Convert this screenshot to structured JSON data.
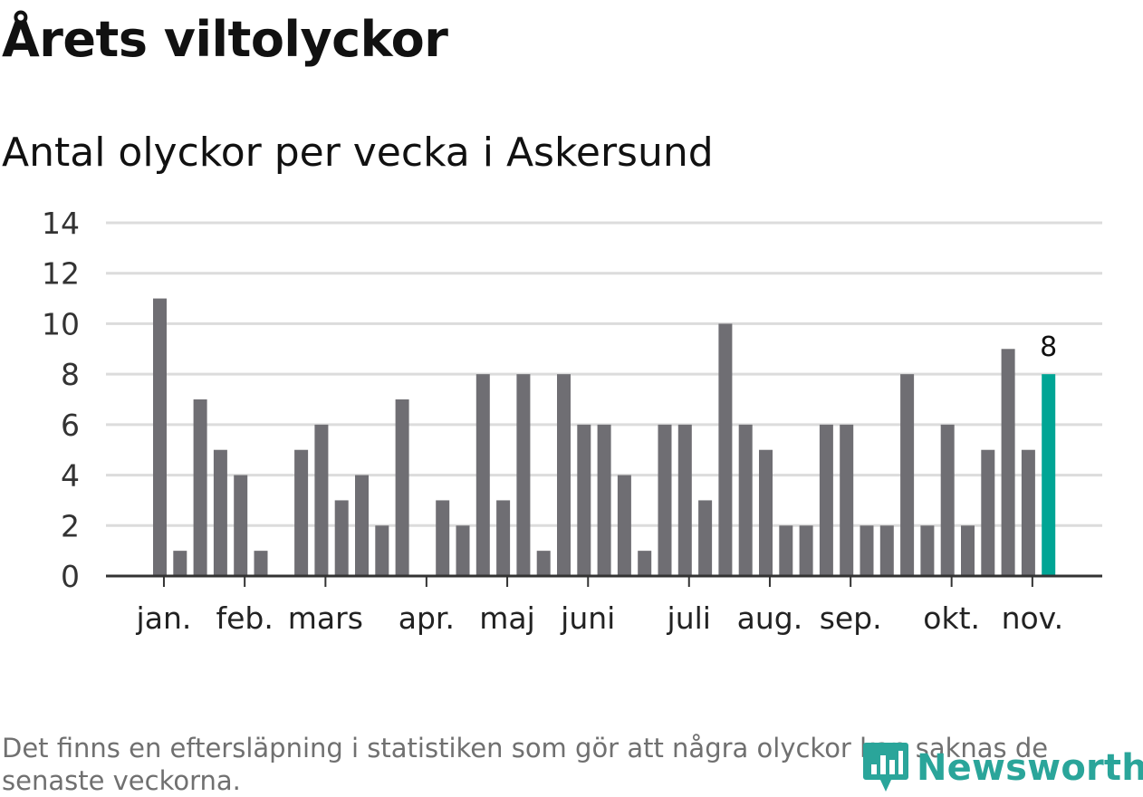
{
  "title": "Årets viltolyckor",
  "subtitle": "Antal olyckor per vecka i Askersund",
  "footnote": "Det finns en eftersläpning i statistiken som gör att några olyckor kan saknas de senaste veckorna.",
  "brand": {
    "name": "Newsworthy",
    "color": "#2aa59a",
    "logo": "newsworthy-logo-icon"
  },
  "chart_data": {
    "type": "bar",
    "title": "Antal olyckor per vecka i Askersund",
    "xlabel": "",
    "ylabel": "",
    "ylim": [
      0,
      14
    ],
    "yticks": [
      0,
      2,
      4,
      6,
      8,
      10,
      12,
      14
    ],
    "grid": true,
    "legend": "none",
    "bar_color": "#6f6e73",
    "highlight_color": "#00a595",
    "highlight_index": 44,
    "highlight_label": "8",
    "week_values": [
      11,
      1,
      7,
      5,
      4,
      1,
      0,
      5,
      6,
      3,
      4,
      2,
      7,
      0,
      3,
      2,
      8,
      3,
      8,
      1,
      8,
      6,
      6,
      4,
      1,
      6,
      6,
      3,
      10,
      6,
      5,
      2,
      2,
      6,
      6,
      2,
      2,
      8,
      2,
      6,
      2,
      5,
      9,
      5,
      8
    ],
    "month_ticks": [
      {
        "label": "jan.",
        "week": 0.2
      },
      {
        "label": "feb.",
        "week": 4.2
      },
      {
        "label": "mars",
        "week": 8.2
      },
      {
        "label": "apr.",
        "week": 13.2
      },
      {
        "label": "maj",
        "week": 17.2
      },
      {
        "label": "juni",
        "week": 21.2
      },
      {
        "label": "juli",
        "week": 26.2
      },
      {
        "label": "aug.",
        "week": 30.2
      },
      {
        "label": "sep.",
        "week": 34.2
      },
      {
        "label": "okt.",
        "week": 39.2
      },
      {
        "label": "nov.",
        "week": 43.2
      }
    ]
  }
}
